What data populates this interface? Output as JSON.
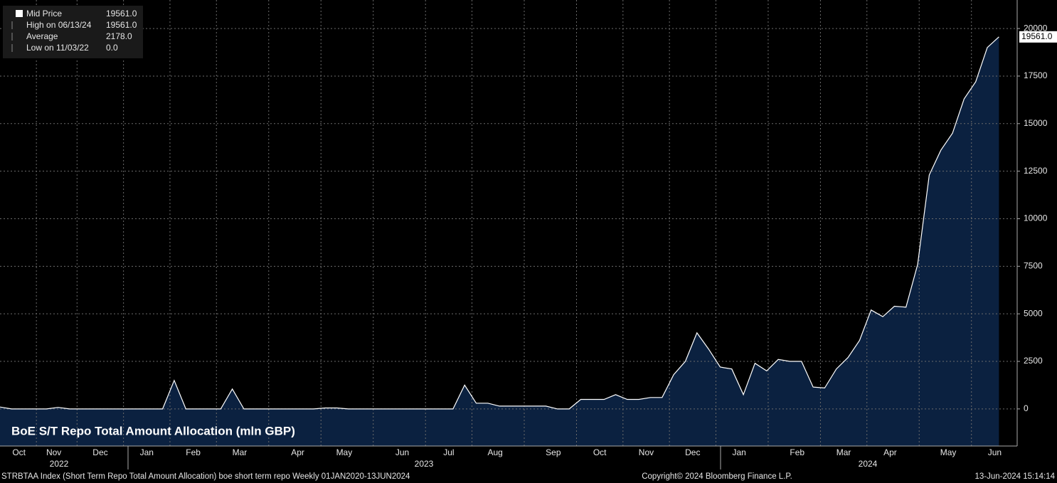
{
  "chart_data": {
    "type": "area",
    "title": "BoE S/T Repo Total Amount Allocation (mln GBP)",
    "categories": [
      null,
      null,
      "Oct",
      null,
      null,
      "Nov",
      null,
      null,
      null,
      "Dec",
      null,
      null,
      null,
      "Jan",
      null,
      null,
      null,
      "Feb",
      null,
      null,
      null,
      "Mar",
      null,
      null,
      null,
      null,
      "Apr",
      null,
      null,
      null,
      "May",
      null,
      null,
      null,
      null,
      "Jun",
      null,
      null,
      null,
      "Jul",
      null,
      null,
      null,
      "Aug",
      null,
      null,
      null,
      null,
      "Sep",
      null,
      null,
      null,
      "Oct",
      null,
      null,
      null,
      "Nov",
      null,
      null,
      null,
      "Dec",
      null,
      null,
      null,
      "Jan",
      null,
      null,
      null,
      null,
      "Feb",
      null,
      null,
      null,
      "Mar",
      null,
      null,
      null,
      "Apr",
      null,
      null,
      null,
      null,
      "May",
      null,
      null,
      null,
      "Jun"
    ],
    "year_labels": [
      "2022",
      "2023",
      "2024"
    ],
    "series": [
      {
        "name": "Mid Price",
        "color": "#ffffff",
        "fill": "#0b2140",
        "values": [
          100,
          0,
          0,
          0,
          0,
          80,
          0,
          0,
          0,
          0,
          0,
          0,
          0,
          0,
          0,
          1500,
          0,
          0,
          0,
          0,
          1050,
          0,
          0,
          0,
          0,
          0,
          0,
          0,
          50,
          50,
          0,
          0,
          0,
          0,
          0,
          0,
          0,
          0,
          0,
          0,
          1250,
          300,
          300,
          150,
          150,
          150,
          150,
          150,
          0,
          0,
          500,
          500,
          500,
          750,
          500,
          500,
          600,
          600,
          1800,
          2500,
          4000,
          3150,
          2200,
          2100,
          750,
          2400,
          2000,
          2600,
          2500,
          2500,
          1150,
          1100,
          2100,
          2700,
          3600,
          5200,
          4850,
          5400,
          5350,
          7600,
          12300,
          13600,
          14500,
          16300,
          17200,
          19000,
          19561
        ]
      }
    ],
    "ylim": [
      -1950,
      21500
    ],
    "yticks": [
      0,
      2500,
      5000,
      7500,
      10000,
      12500,
      15000,
      17500,
      20000
    ],
    "grid": true,
    "last_value_label": "19561.0",
    "legend_price": "19561.0",
    "legend_stats": [
      {
        "label": "High on 06/13/24",
        "value": "19561.0"
      },
      {
        "label": "Average",
        "value": "2178.0"
      },
      {
        "label": "Low on 11/03/22",
        "value": "0.0"
      }
    ],
    "footer": {
      "left": "STRBTAA Index (Short Term Repo Total Amount Allocation) boe short term repo  Weekly 01JAN2020-13JUN2024",
      "center": "Copyright© 2024 Bloomberg Finance L.P.",
      "right": "13-Jun-2024 15:14:14"
    }
  }
}
